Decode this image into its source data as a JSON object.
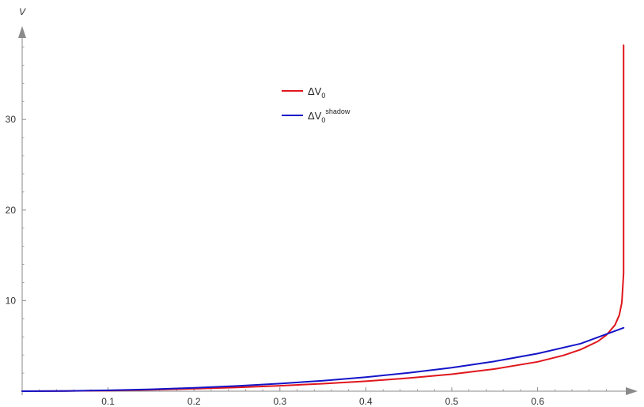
{
  "chart_data": {
    "type": "line",
    "title": "",
    "xlabel": "",
    "ylabel": "V",
    "xlim": [
      0,
      0.7
    ],
    "ylim": [
      0,
      38
    ],
    "grid": false,
    "legend_position": "upper-center",
    "x_ticks": [
      0.1,
      0.2,
      0.3,
      0.4,
      0.5,
      0.6
    ],
    "x_tick_labels": [
      "0.1",
      "0.2",
      "0.3",
      "0.4",
      "0.5",
      "0.6"
    ],
    "y_ticks": [
      10,
      20,
      30
    ],
    "y_tick_labels": [
      "10",
      "20",
      "30"
    ],
    "series": [
      {
        "name": "ΔV0",
        "legend_base": "ΔV",
        "legend_sub": "0",
        "legend_sup": "",
        "color": "#e0161c",
        "x": [
          0,
          0.05,
          0.1,
          0.15,
          0.2,
          0.25,
          0.3,
          0.35,
          0.4,
          0.45,
          0.5,
          0.55,
          0.6,
          0.63,
          0.65,
          0.67,
          0.68,
          0.69,
          0.695,
          0.698,
          0.7,
          0.7,
          0.7
        ],
        "y": [
          0,
          0.02,
          0.07,
          0.15,
          0.27,
          0.42,
          0.6,
          0.83,
          1.1,
          1.45,
          1.88,
          2.45,
          3.25,
          3.95,
          4.6,
          5.5,
          6.2,
          7.3,
          8.4,
          9.8,
          13,
          25,
          38.2
        ]
      },
      {
        "name": "ΔV0shadow",
        "legend_base": "ΔV",
        "legend_sub": "0",
        "legend_sup": "shadow",
        "color": "#1414c8",
        "x": [
          0,
          0.05,
          0.1,
          0.15,
          0.2,
          0.25,
          0.3,
          0.35,
          0.4,
          0.45,
          0.5,
          0.55,
          0.6,
          0.65,
          0.7
        ],
        "y": [
          0,
          0.03,
          0.1,
          0.21,
          0.37,
          0.58,
          0.84,
          1.16,
          1.55,
          2.03,
          2.6,
          3.3,
          4.15,
          5.25,
          7.0
        ]
      }
    ]
  }
}
